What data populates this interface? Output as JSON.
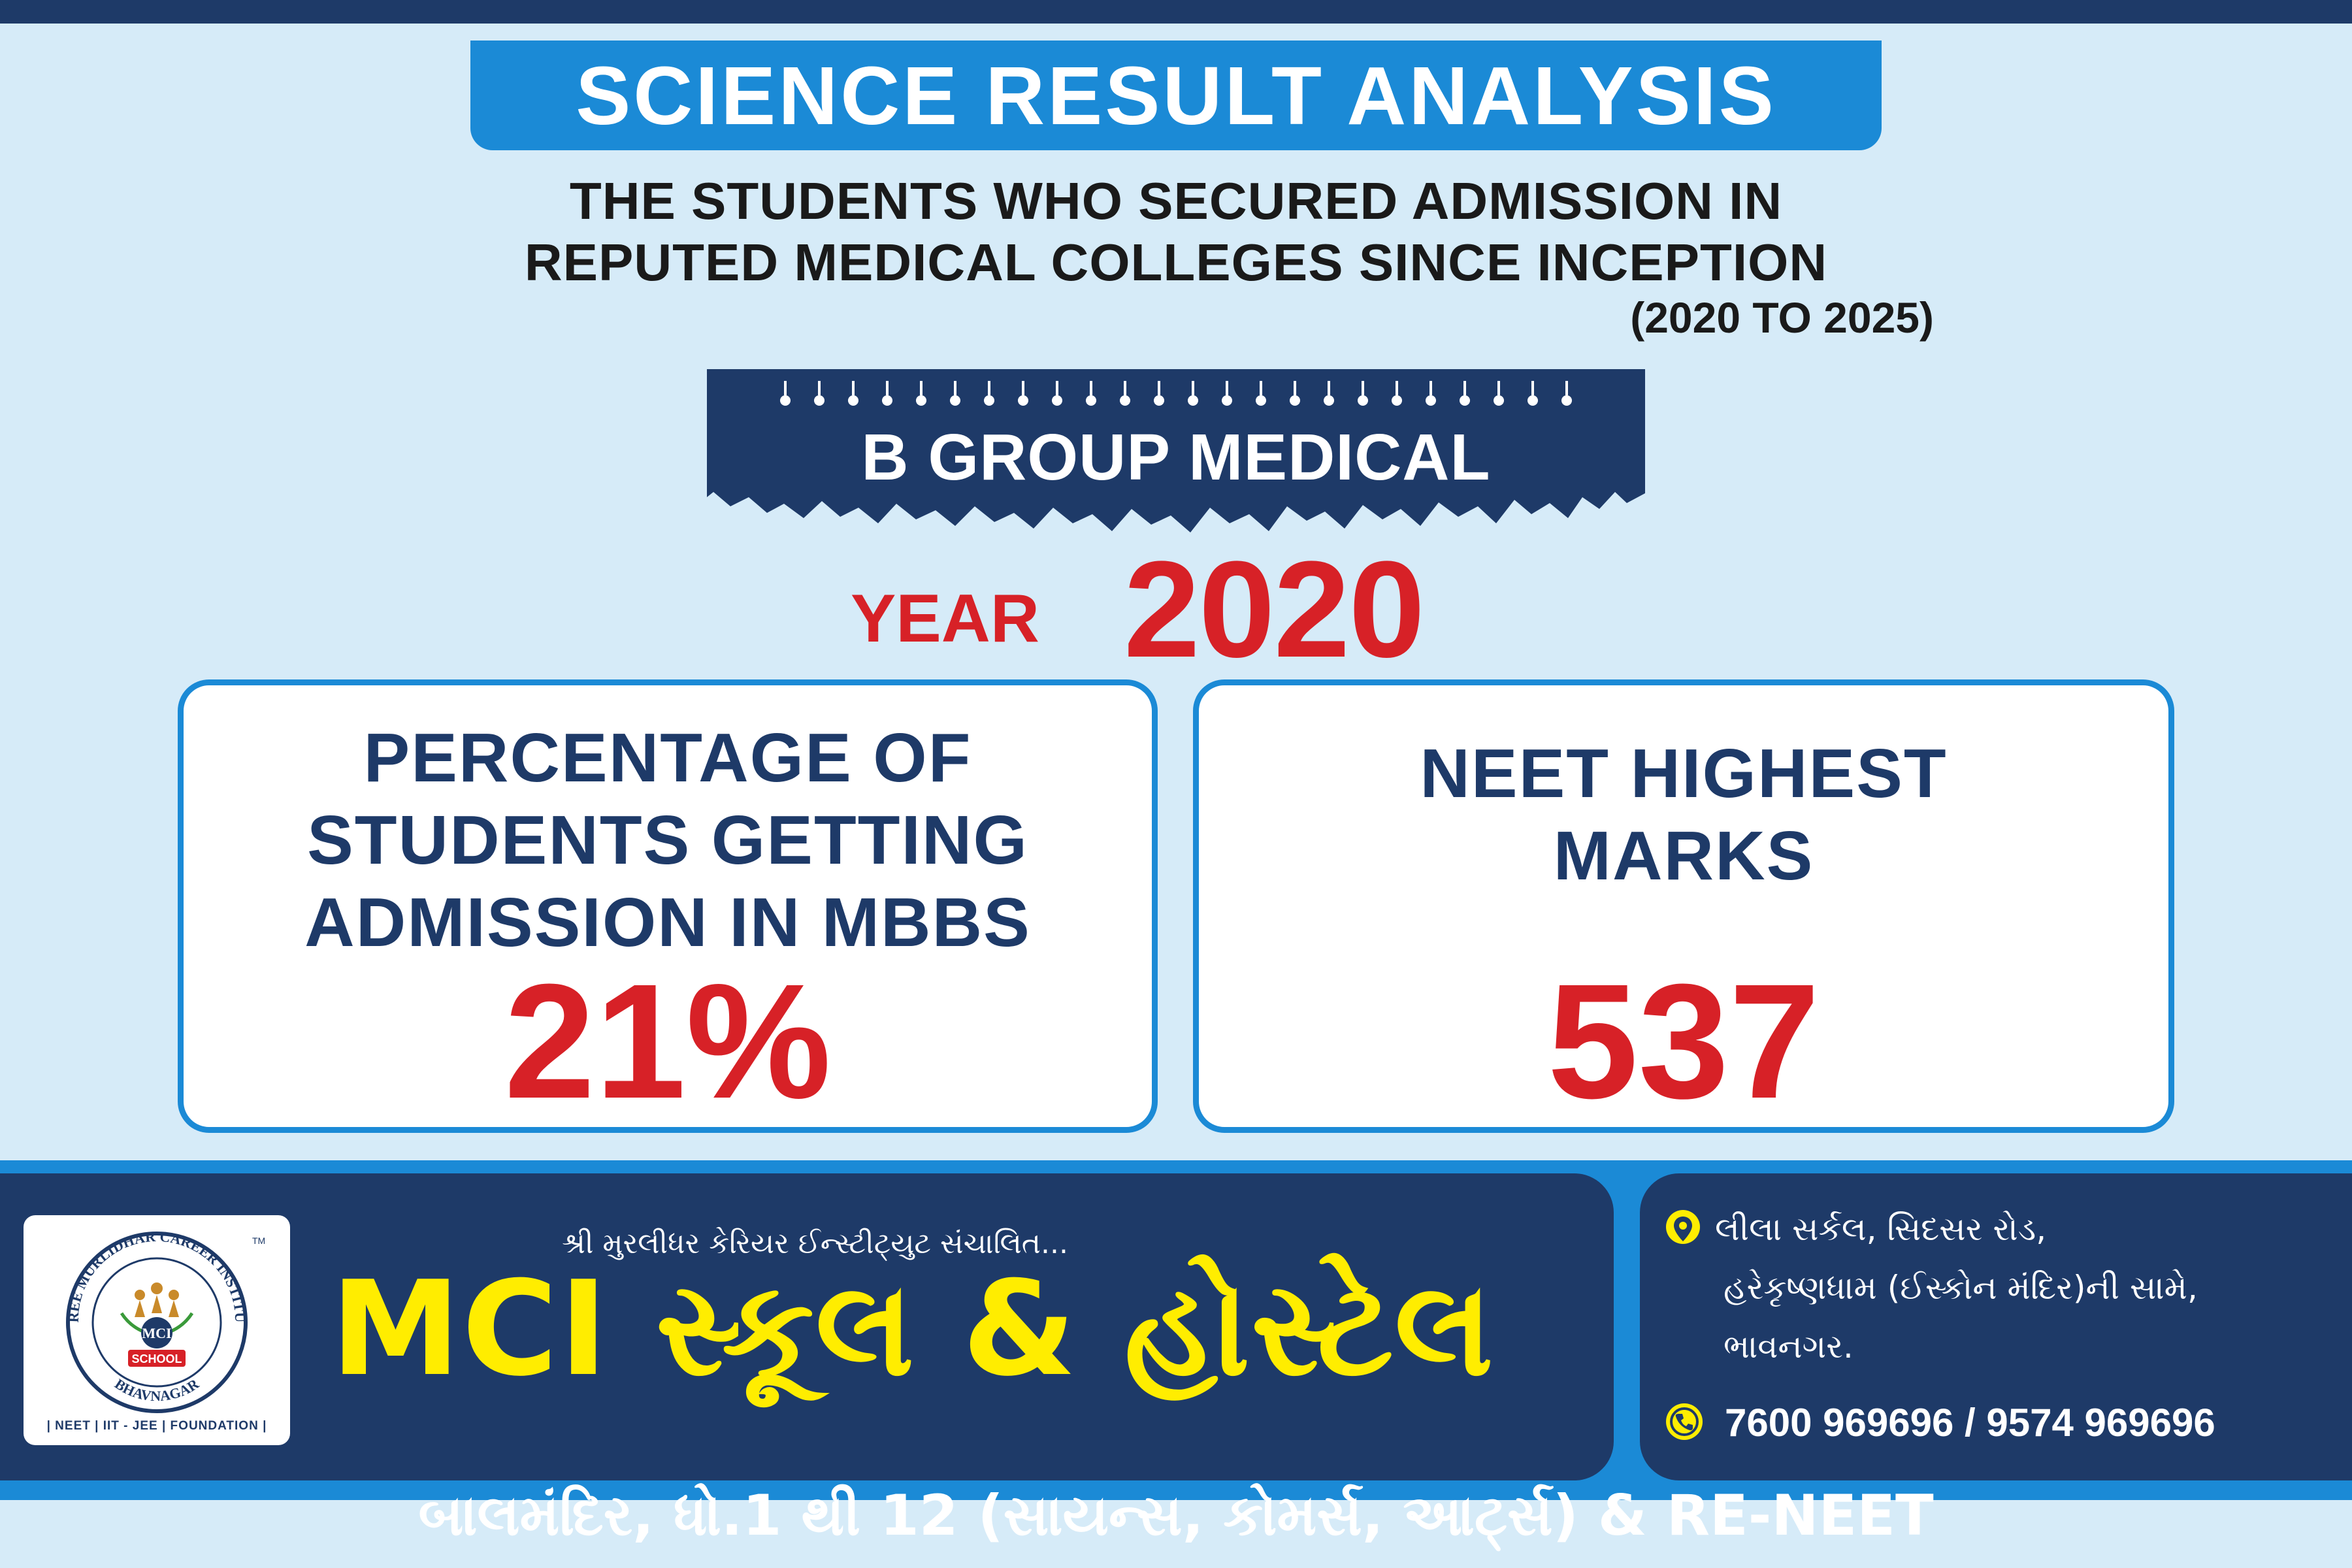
{
  "header": {
    "title": "SCIENCE RESULT ANALYSIS",
    "subtitle_line1": "THE STUDENTS WHO SECURED ADMISSION IN",
    "subtitle_line2": "REPUTED MEDICAL COLLEGES SINCE INCEPTION",
    "subtitle_years": "(2020 TO 2025)"
  },
  "banner": {
    "label": "B GROUP MEDICAL"
  },
  "year": {
    "label": "YEAR",
    "value": "2020"
  },
  "cards": [
    {
      "title_lines": [
        "PERCENTAGE OF",
        "STUDENTS GETTING",
        "ADMISSION IN MBBS"
      ],
      "value": "21%"
    },
    {
      "title_lines": [
        "NEET HIGHEST",
        "MARKS"
      ],
      "value": "537"
    }
  ],
  "brand": {
    "tagline": "શ્રી મુરલીધર કેરિયર ઈન્સ્ટીટ્યુટ સંચાલિત...",
    "name": "MCI સ્કૂલ & હોસ્ટેલ",
    "logo_ring_text": "SHREE MURLIDHAR CAREER INSTITUTE",
    "logo_city": "BHAVNAGAR",
    "logo_center": "MCI",
    "logo_badge": "SCHOOL",
    "logo_tm": "TM",
    "logo_tagline": "| NEET | IIT - JEE | FOUNDATION |"
  },
  "contact": {
    "address_lines": [
      "લીલા સર્કલ, સિદસર રોડ,",
      "હરેકૃષ્ણધામ (ઈસ્કોન મંદિર)ની સામે,",
      "ભાવનગર."
    ],
    "phone": "7600 969696 / 9574 969696",
    "location_icon": "location-pin-icon",
    "phone_icon": "phone-icon"
  },
  "footer": {
    "text": "બાલમંદિર, ધો.1 થી 12 (સાયન્સ, કોમર્સ, આર્ટ્સ) & RE-NEET"
  },
  "colors": {
    "navy": "#1e3a68",
    "blue": "#1b8ad6",
    "red": "#d72127",
    "yellow": "#ffed00",
    "background": "#d6ebf8"
  }
}
